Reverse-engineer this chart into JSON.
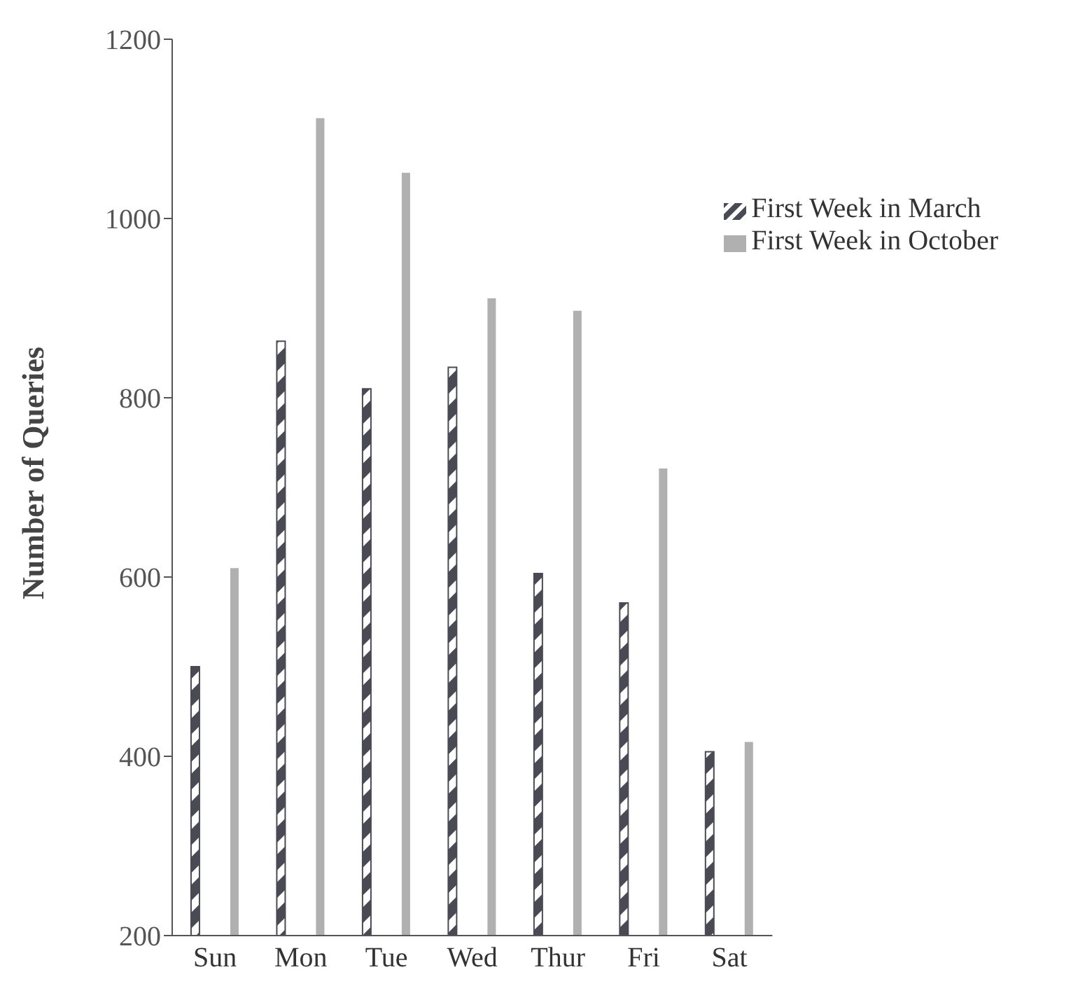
{
  "chart_data": {
    "type": "bar",
    "ylabel": "Number of Queries",
    "categories": [
      "Sun",
      "Mon",
      "Tue",
      "Wed",
      "Thur",
      "Fri",
      "Sat"
    ],
    "series": [
      {
        "name": "First Week in March",
        "color": "#4a4a55",
        "values": [
          500,
          863,
          810,
          834,
          604,
          571,
          405
        ]
      },
      {
        "name": "First Week in October",
        "color": "#b0b0b0",
        "values": [
          610,
          1112,
          1051,
          911,
          897,
          721,
          416
        ]
      }
    ],
    "ylim": [
      200,
      1200
    ],
    "yticks": [
      200,
      400,
      600,
      800,
      1000,
      1200
    ],
    "grid": false,
    "legend": "top right"
  }
}
